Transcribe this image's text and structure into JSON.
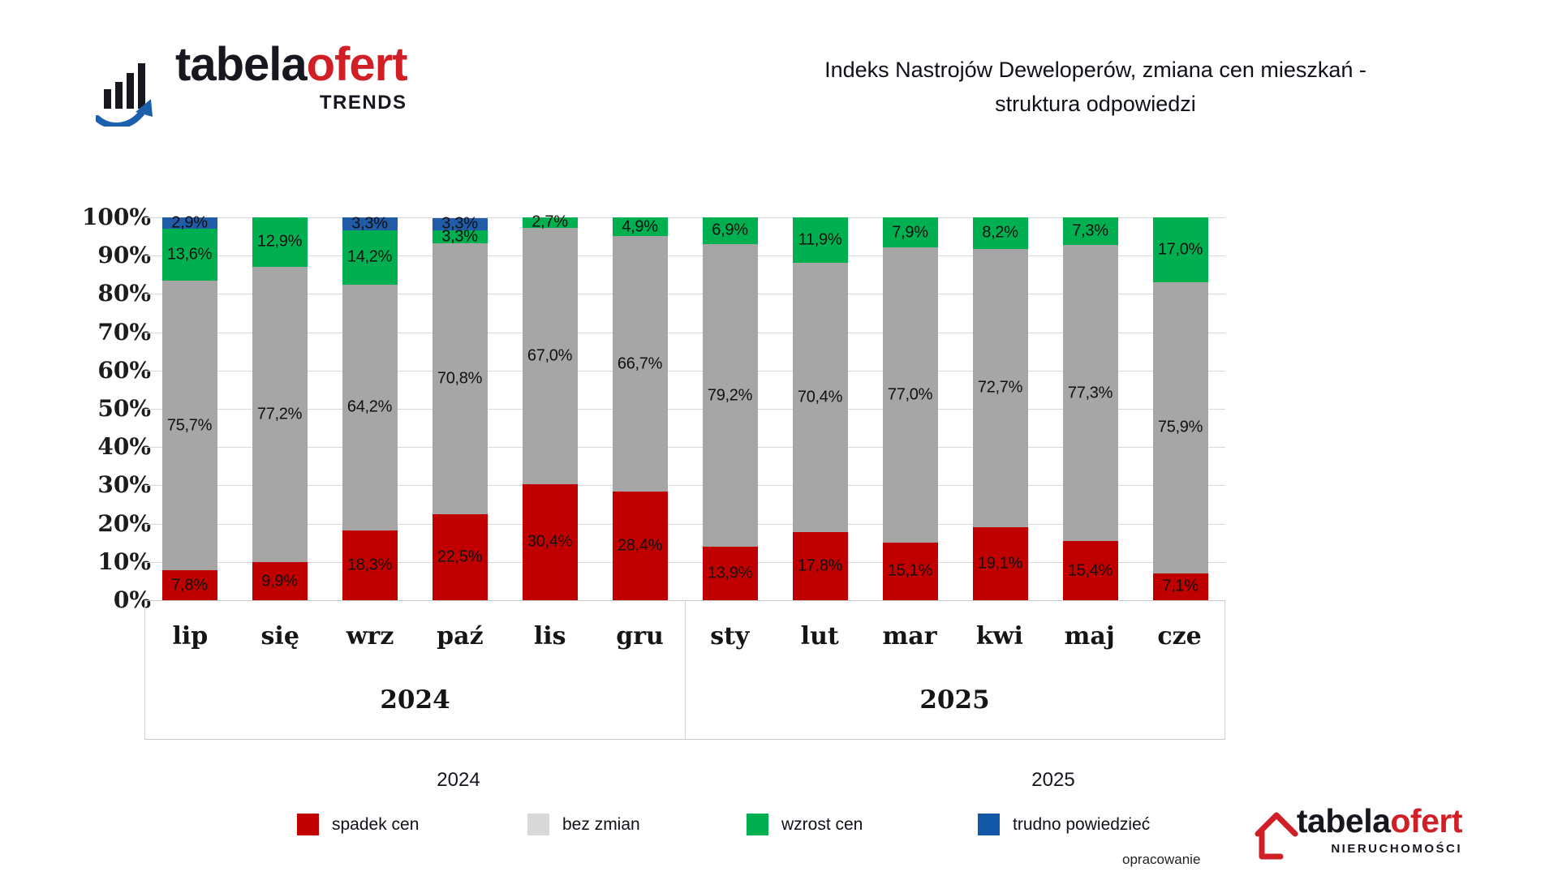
{
  "header": {
    "logo": {
      "word_black": "tabela",
      "word_red": "ofert",
      "subtitle": "TRENDS"
    },
    "title_line1": "Indeks Nastrojów Deweloperów, zmiana cen mieszkań -",
    "title_line2": "struktura odpowiedzi"
  },
  "chart_data": {
    "type": "bar",
    "subtype": "stacked-percentage-column",
    "categories": [
      "lip",
      "się",
      "wrz",
      "paź",
      "lis",
      "gru",
      "sty",
      "lut",
      "mar",
      "kwi",
      "maj",
      "cze"
    ],
    "groups": [
      {
        "label": "2024",
        "span": 6
      },
      {
        "label": "2025",
        "span": 6
      }
    ],
    "y_axis": {
      "ticks": [
        "100%",
        "90%",
        "80%",
        "70%",
        "60%",
        "50%",
        "40%",
        "30%",
        "20%",
        "10%",
        "0%"
      ],
      "min": 0,
      "max": 100,
      "grid": true
    },
    "series": [
      {
        "name": "spadek cen",
        "color": "#c00000",
        "values": [
          7.8,
          9.9,
          18.3,
          22.5,
          30.4,
          28.4,
          13.9,
          17.8,
          15.1,
          19.1,
          15.4,
          7.1
        ],
        "labels": [
          "7,8%",
          "9,9%",
          "18,3%",
          "22,5%",
          "30,4%",
          "28,4%",
          "13,9%",
          "17,8%",
          "15,1%",
          "19,1%",
          "15,4%",
          "7,1%"
        ]
      },
      {
        "name": "bez zmian",
        "color": "#a6a6a6",
        "values": [
          75.7,
          77.2,
          64.2,
          70.8,
          67.0,
          66.7,
          79.2,
          70.4,
          77.0,
          72.7,
          77.3,
          75.9
        ],
        "labels": [
          "75,7%",
          "77,2%",
          "64,2%",
          "70,8%",
          "67,0%",
          "66,7%",
          "79,2%",
          "70,4%",
          "77,0%",
          "72,7%",
          "77,3%",
          "75,9%"
        ]
      },
      {
        "name": "wzrost cen",
        "color": "#00b050",
        "values": [
          13.6,
          12.9,
          14.2,
          3.3,
          2.7,
          4.9,
          6.9,
          11.9,
          7.9,
          8.2,
          7.3,
          17.0
        ],
        "labels": [
          "13,6%",
          "12,9%",
          "14,2%",
          "3,3%",
          "2,7%",
          "4,9%",
          "6,9%",
          "11,9%",
          "7,9%",
          "8,2%",
          "7,3%",
          "17,0%"
        ]
      },
      {
        "name": "trudno powiedzieć",
        "color": "#215ca8",
        "values": [
          2.9,
          0,
          3.3,
          3.3,
          0,
          0,
          0,
          0,
          0,
          0,
          0,
          0
        ],
        "labels": [
          "2,9%",
          "",
          "3,3%",
          "3,3%",
          "",
          "",
          "",
          "",
          "",
          "",
          "",
          ""
        ]
      }
    ],
    "title": "Indeks Nastrojów Deweloperów, zmiana cen mieszkań - struktura odpowiedzi",
    "xlabel": "",
    "ylabel": "",
    "legend_position": "bottom"
  },
  "below_axis_year_labels": {
    "left": "2024",
    "right": "2025"
  },
  "legend": {
    "items": [
      {
        "label": "spadek cen",
        "color": "#c00000"
      },
      {
        "label": "bez zmian",
        "color": "#d9d9d9"
      },
      {
        "label": "wzrost cen",
        "color": "#00b050"
      },
      {
        "label": "trudno powiedzieć",
        "color": "#1257a8"
      }
    ]
  },
  "footer": {
    "credit": "opracowanie",
    "logo": {
      "word_black": "tabela",
      "word_red": "ofert",
      "subtitle": "NIERUCHOMOŚCI"
    }
  }
}
